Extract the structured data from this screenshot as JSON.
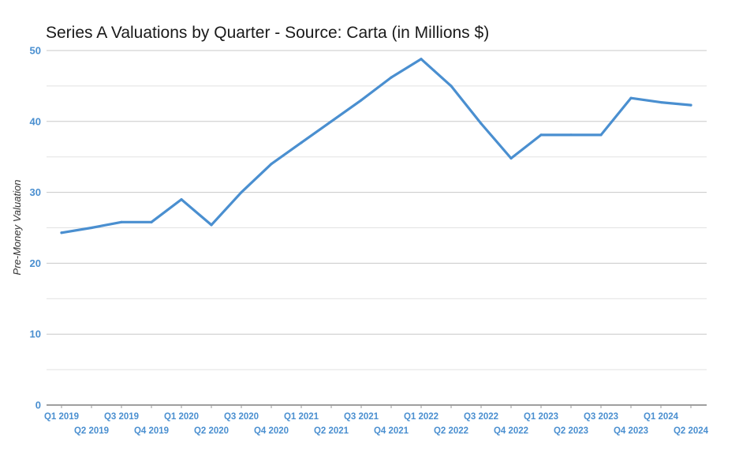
{
  "chart_data": {
    "type": "line",
    "title": "Series A Valuations by Quarter - Source: Carta (in Millions $)",
    "xlabel": "",
    "ylabel": "Pre-Money Valuation",
    "ylim": [
      0,
      50
    ],
    "yticks": [
      0,
      10,
      20,
      30,
      40,
      50
    ],
    "grid": true,
    "categories": [
      "Q1 2019",
      "Q2 2019",
      "Q3 2019",
      "Q4 2019",
      "Q1 2020",
      "Q2 2020",
      "Q3 2020",
      "Q4 2020",
      "Q1 2021",
      "Q2 2021",
      "Q3 2021",
      "Q4 2021",
      "Q1 2022",
      "Q2 2022",
      "Q3 2022",
      "Q4 2022",
      "Q1 2023",
      "Q2 2023",
      "Q3 2023",
      "Q4 2023",
      "Q1 2024",
      "Q2 2024"
    ],
    "series": [
      {
        "name": "Pre-Money Valuation",
        "color": "#4a8fd0",
        "values": [
          24.3,
          25.0,
          25.8,
          25.8,
          29.0,
          25.4,
          30.0,
          34.0,
          37.0,
          40.0,
          43.0,
          46.2,
          48.8,
          45.0,
          39.7,
          34.8,
          38.1,
          38.1,
          38.1,
          43.3,
          42.7,
          42.3
        ]
      }
    ]
  }
}
